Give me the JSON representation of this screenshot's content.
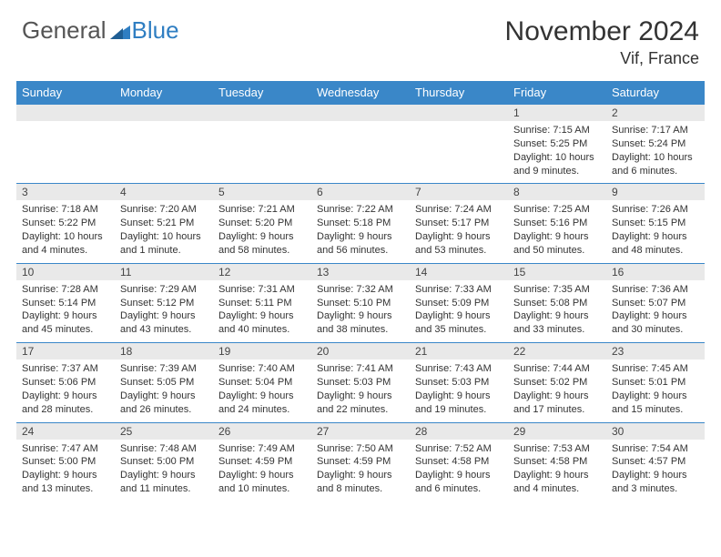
{
  "brand": {
    "general": "General",
    "blue": "Blue"
  },
  "title": "November 2024",
  "location": "Vif, France",
  "colors": {
    "header_bg": "#3a87c8",
    "header_text": "#ffffff",
    "daynum_bg": "#e9e9e9",
    "border": "#3a87c8",
    "logo_blue": "#2f7ec2",
    "body_text": "#333333"
  },
  "dayNames": [
    "Sunday",
    "Monday",
    "Tuesday",
    "Wednesday",
    "Thursday",
    "Friday",
    "Saturday"
  ],
  "weeks": [
    [
      null,
      null,
      null,
      null,
      null,
      {
        "n": "1",
        "sunrise": "Sunrise: 7:15 AM",
        "sunset": "Sunset: 5:25 PM",
        "daylight": "Daylight: 10 hours and 9 minutes."
      },
      {
        "n": "2",
        "sunrise": "Sunrise: 7:17 AM",
        "sunset": "Sunset: 5:24 PM",
        "daylight": "Daylight: 10 hours and 6 minutes."
      }
    ],
    [
      {
        "n": "3",
        "sunrise": "Sunrise: 7:18 AM",
        "sunset": "Sunset: 5:22 PM",
        "daylight": "Daylight: 10 hours and 4 minutes."
      },
      {
        "n": "4",
        "sunrise": "Sunrise: 7:20 AM",
        "sunset": "Sunset: 5:21 PM",
        "daylight": "Daylight: 10 hours and 1 minute."
      },
      {
        "n": "5",
        "sunrise": "Sunrise: 7:21 AM",
        "sunset": "Sunset: 5:20 PM",
        "daylight": "Daylight: 9 hours and 58 minutes."
      },
      {
        "n": "6",
        "sunrise": "Sunrise: 7:22 AM",
        "sunset": "Sunset: 5:18 PM",
        "daylight": "Daylight: 9 hours and 56 minutes."
      },
      {
        "n": "7",
        "sunrise": "Sunrise: 7:24 AM",
        "sunset": "Sunset: 5:17 PM",
        "daylight": "Daylight: 9 hours and 53 minutes."
      },
      {
        "n": "8",
        "sunrise": "Sunrise: 7:25 AM",
        "sunset": "Sunset: 5:16 PM",
        "daylight": "Daylight: 9 hours and 50 minutes."
      },
      {
        "n": "9",
        "sunrise": "Sunrise: 7:26 AM",
        "sunset": "Sunset: 5:15 PM",
        "daylight": "Daylight: 9 hours and 48 minutes."
      }
    ],
    [
      {
        "n": "10",
        "sunrise": "Sunrise: 7:28 AM",
        "sunset": "Sunset: 5:14 PM",
        "daylight": "Daylight: 9 hours and 45 minutes."
      },
      {
        "n": "11",
        "sunrise": "Sunrise: 7:29 AM",
        "sunset": "Sunset: 5:12 PM",
        "daylight": "Daylight: 9 hours and 43 minutes."
      },
      {
        "n": "12",
        "sunrise": "Sunrise: 7:31 AM",
        "sunset": "Sunset: 5:11 PM",
        "daylight": "Daylight: 9 hours and 40 minutes."
      },
      {
        "n": "13",
        "sunrise": "Sunrise: 7:32 AM",
        "sunset": "Sunset: 5:10 PM",
        "daylight": "Daylight: 9 hours and 38 minutes."
      },
      {
        "n": "14",
        "sunrise": "Sunrise: 7:33 AM",
        "sunset": "Sunset: 5:09 PM",
        "daylight": "Daylight: 9 hours and 35 minutes."
      },
      {
        "n": "15",
        "sunrise": "Sunrise: 7:35 AM",
        "sunset": "Sunset: 5:08 PM",
        "daylight": "Daylight: 9 hours and 33 minutes."
      },
      {
        "n": "16",
        "sunrise": "Sunrise: 7:36 AM",
        "sunset": "Sunset: 5:07 PM",
        "daylight": "Daylight: 9 hours and 30 minutes."
      }
    ],
    [
      {
        "n": "17",
        "sunrise": "Sunrise: 7:37 AM",
        "sunset": "Sunset: 5:06 PM",
        "daylight": "Daylight: 9 hours and 28 minutes."
      },
      {
        "n": "18",
        "sunrise": "Sunrise: 7:39 AM",
        "sunset": "Sunset: 5:05 PM",
        "daylight": "Daylight: 9 hours and 26 minutes."
      },
      {
        "n": "19",
        "sunrise": "Sunrise: 7:40 AM",
        "sunset": "Sunset: 5:04 PM",
        "daylight": "Daylight: 9 hours and 24 minutes."
      },
      {
        "n": "20",
        "sunrise": "Sunrise: 7:41 AM",
        "sunset": "Sunset: 5:03 PM",
        "daylight": "Daylight: 9 hours and 22 minutes."
      },
      {
        "n": "21",
        "sunrise": "Sunrise: 7:43 AM",
        "sunset": "Sunset: 5:03 PM",
        "daylight": "Daylight: 9 hours and 19 minutes."
      },
      {
        "n": "22",
        "sunrise": "Sunrise: 7:44 AM",
        "sunset": "Sunset: 5:02 PM",
        "daylight": "Daylight: 9 hours and 17 minutes."
      },
      {
        "n": "23",
        "sunrise": "Sunrise: 7:45 AM",
        "sunset": "Sunset: 5:01 PM",
        "daylight": "Daylight: 9 hours and 15 minutes."
      }
    ],
    [
      {
        "n": "24",
        "sunrise": "Sunrise: 7:47 AM",
        "sunset": "Sunset: 5:00 PM",
        "daylight": "Daylight: 9 hours and 13 minutes."
      },
      {
        "n": "25",
        "sunrise": "Sunrise: 7:48 AM",
        "sunset": "Sunset: 5:00 PM",
        "daylight": "Daylight: 9 hours and 11 minutes."
      },
      {
        "n": "26",
        "sunrise": "Sunrise: 7:49 AM",
        "sunset": "Sunset: 4:59 PM",
        "daylight": "Daylight: 9 hours and 10 minutes."
      },
      {
        "n": "27",
        "sunrise": "Sunrise: 7:50 AM",
        "sunset": "Sunset: 4:59 PM",
        "daylight": "Daylight: 9 hours and 8 minutes."
      },
      {
        "n": "28",
        "sunrise": "Sunrise: 7:52 AM",
        "sunset": "Sunset: 4:58 PM",
        "daylight": "Daylight: 9 hours and 6 minutes."
      },
      {
        "n": "29",
        "sunrise": "Sunrise: 7:53 AM",
        "sunset": "Sunset: 4:58 PM",
        "daylight": "Daylight: 9 hours and 4 minutes."
      },
      {
        "n": "30",
        "sunrise": "Sunrise: 7:54 AM",
        "sunset": "Sunset: 4:57 PM",
        "daylight": "Daylight: 9 hours and 3 minutes."
      }
    ]
  ]
}
